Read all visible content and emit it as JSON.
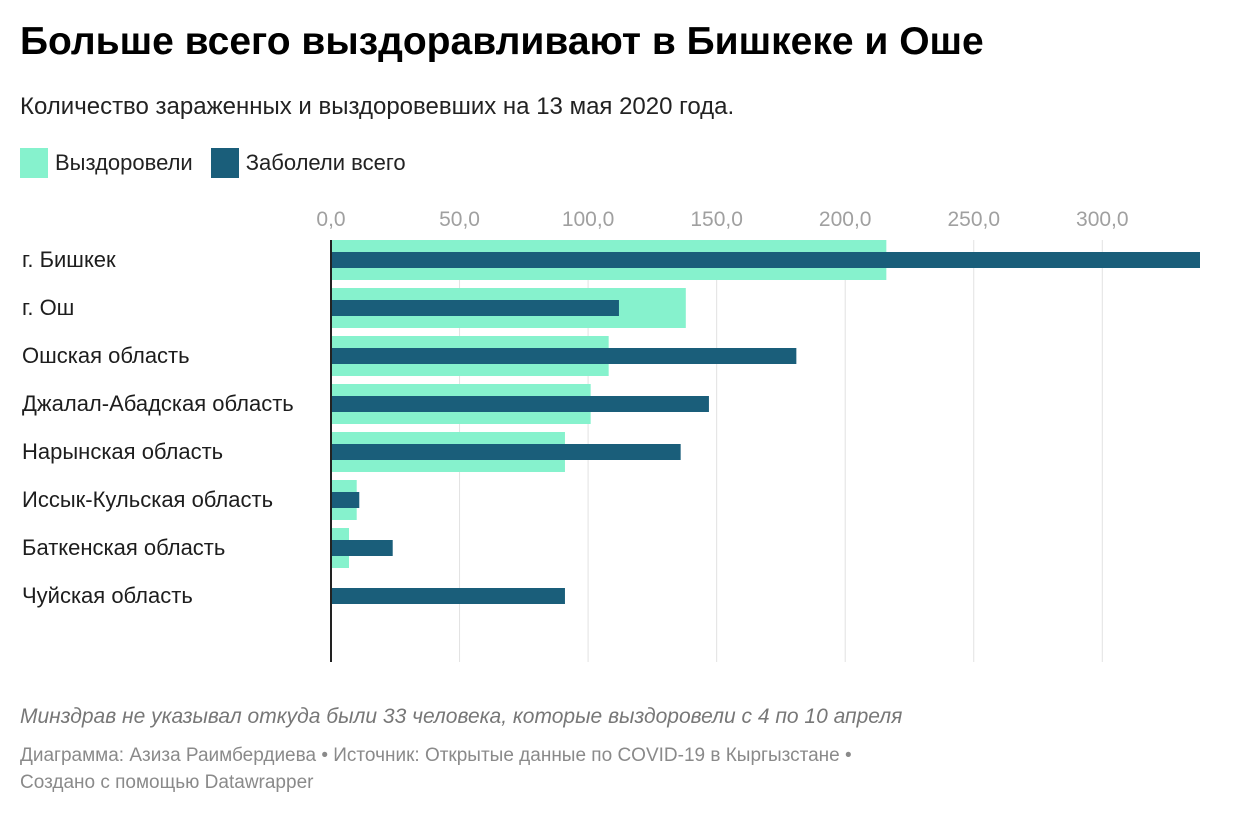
{
  "title": "Больше всего выздоравливают в Бишкеке и Оше",
  "subtitle": "Количество зараженных и выздоровевших на 13 мая 2020 года.",
  "legend": [
    {
      "label": "Выздоровели",
      "color": "#86f2cd"
    },
    {
      "label": "Заболели всего",
      "color": "#1a5e7a"
    }
  ],
  "note": "Минздрав не указывал откуда были 33 человека, которые выздоровели с 4 по 10 апреля",
  "footer": {
    "line1": "Диаграмма: Азиза Раимбердиева • Источник: Открытые данные по COVID-19 в Кыргызстане •",
    "line2": "Создано с помощью Datawrapper"
  },
  "chart_data": {
    "type": "bar",
    "orientation": "horizontal",
    "categories": [
      "г. Бишкек",
      "г. Ош",
      "Ошская область",
      "Джалал-Абадская область",
      "Нарынская область",
      "Иссык-Кульская область",
      "Баткенская область",
      "Чуйская область"
    ],
    "series": [
      {
        "name": "Выздоровели",
        "color": "#86f2cd",
        "values": [
          216,
          138,
          108,
          101,
          91,
          10,
          7,
          0
        ]
      },
      {
        "name": "Заболели всего",
        "color": "#1a5e7a",
        "values": [
          338,
          112,
          181,
          147,
          136,
          11,
          24,
          91
        ]
      }
    ],
    "xticks": [
      "0,0",
      "50,0",
      "100,0",
      "150,0",
      "200,0",
      "250,0",
      "300,0"
    ],
    "xtick_values": [
      0,
      50,
      100,
      150,
      200,
      250,
      300
    ],
    "xlim": [
      0,
      338
    ],
    "grid": true,
    "legend_position": "top-left"
  }
}
